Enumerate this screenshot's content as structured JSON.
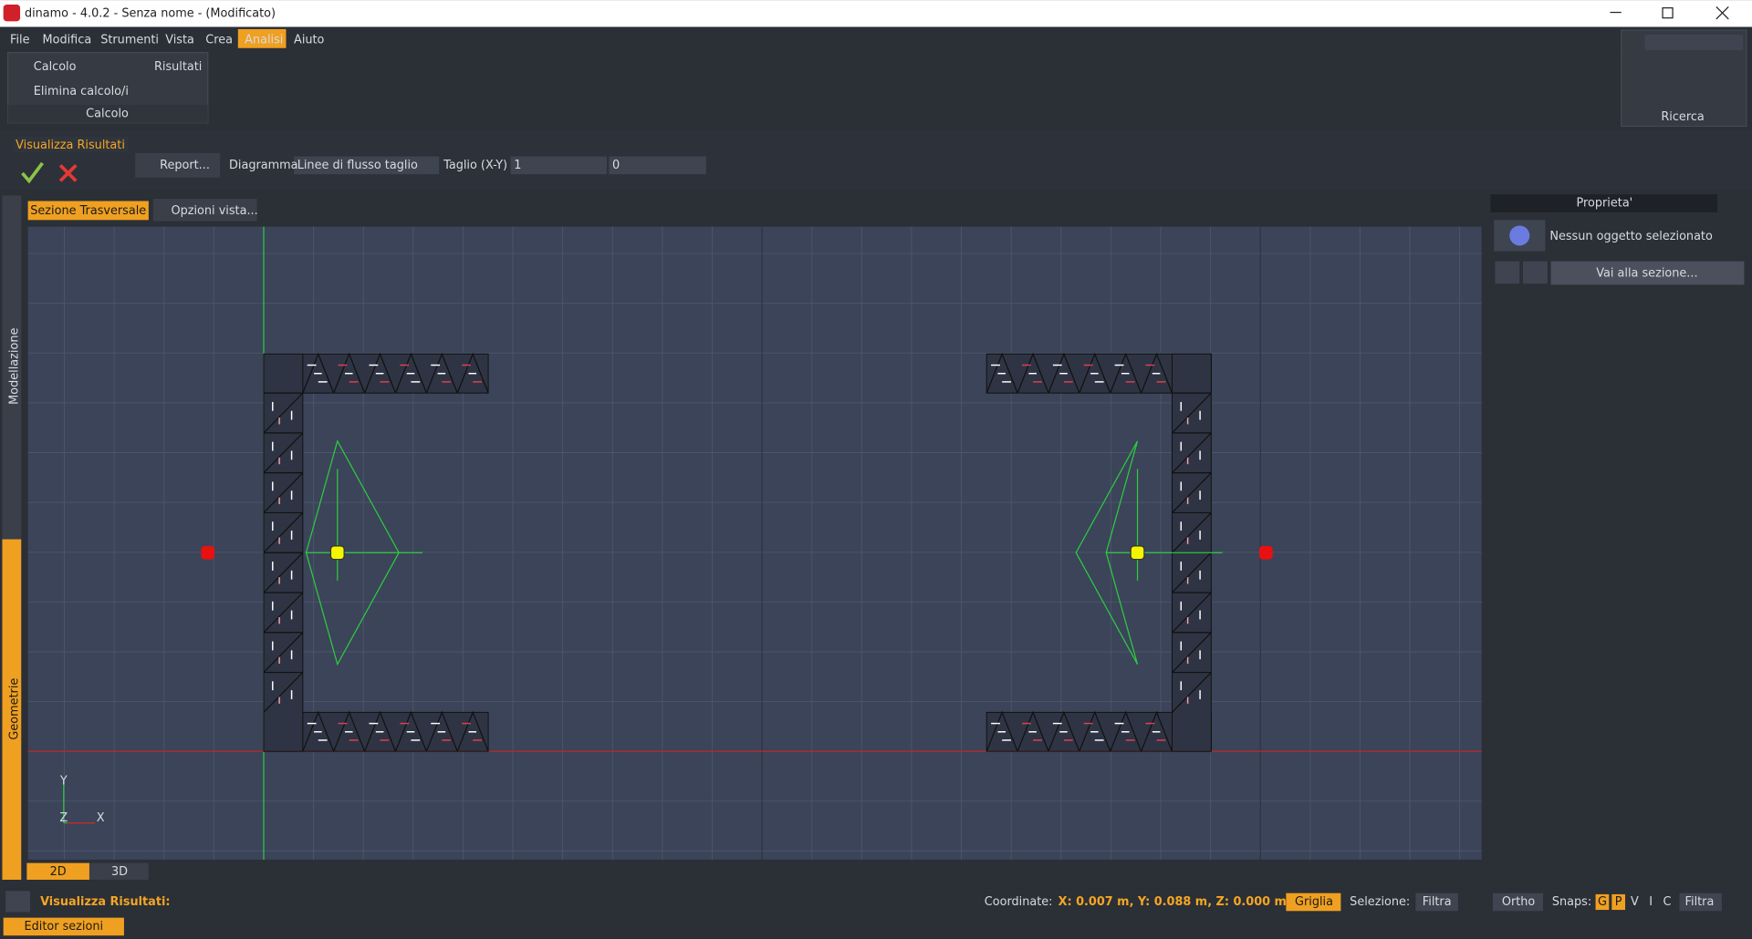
{
  "window": {
    "title": "dinamo - 4.0.2 - Senza nome - (Modificato)"
  },
  "menu": [
    "File",
    "Modifica",
    "Strumenti",
    "Vista",
    "Crea",
    "Analisi",
    "Aiuto"
  ],
  "ribbon": {
    "calcolo": "Calcolo",
    "risultati": "Risultati",
    "elimina": "Elimina calcolo/i",
    "group": "Calcolo",
    "search": "Ricerca"
  },
  "toolbar": {
    "title": "Visualizza Risultati",
    "report": "Report...",
    "diagramma": "Diagramma",
    "diagram_value": "Linee di flusso taglio",
    "taglio": "Taglio (X-Y)",
    "field1": "1",
    "field2": "0"
  },
  "tabs": [
    "Sezione Trasversale",
    "Opzioni vista..."
  ],
  "side_tabs": [
    "Modellazione",
    "Geometrie"
  ],
  "axes": {
    "y": "Y",
    "z": "Z",
    "x": "X"
  },
  "view_tabs": [
    "2D",
    "3D"
  ],
  "properties": {
    "title": "Proprieta'",
    "info": "Nessun oggetto selezionato",
    "goto": "Vai alla sezione..."
  },
  "status": {
    "mode": "Visualizza Risultati:",
    "coord_label": "Coordinate:",
    "coords": "X: 0.007 m, Y: 0.088 m, Z: 0.000 m",
    "grid": "Griglia",
    "selection": "Selezione:",
    "filter": "Filtra",
    "ortho": "Ortho",
    "snaps": "Snaps:",
    "snap_keys": [
      "G",
      "P",
      "V",
      "I",
      "C"
    ],
    "filter2": "Filtra",
    "editor": "Editor sezioni"
  }
}
